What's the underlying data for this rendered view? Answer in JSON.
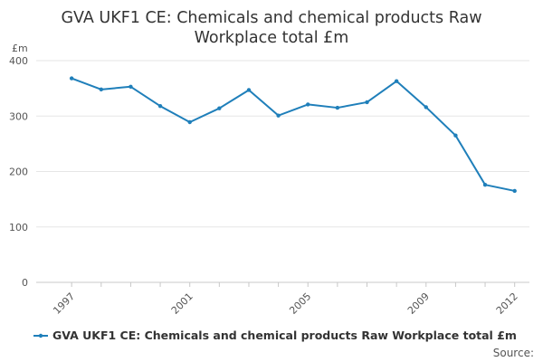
{
  "chart_data": {
    "type": "line",
    "title_lines": [
      "GVA UKF1 CE: Chemicals and chemical products Raw",
      "Workplace total £m"
    ],
    "ylabel": "£m",
    "xlabel": "",
    "x": [
      1997,
      1998,
      1999,
      2000,
      2001,
      2002,
      2003,
      2004,
      2005,
      2006,
      2007,
      2008,
      2009,
      2010,
      2011,
      2012
    ],
    "x_tick_labels": [
      "1997",
      "2001",
      "2005",
      "2009",
      "2012"
    ],
    "x_tick_values": [
      1997,
      2001,
      2005,
      2009,
      2012
    ],
    "xlim": [
      1997,
      2012
    ],
    "y_tick_labels": [
      "0",
      "100",
      "200",
      "300",
      "400"
    ],
    "y_tick_values": [
      0,
      100,
      200,
      300,
      400
    ],
    "ylim": [
      0,
      400
    ],
    "grid": true,
    "legend_position": "bottom",
    "series": [
      {
        "name": "GVA UKF1 CE: Chemicals and chemical products Raw Workplace total £m",
        "color": "#1f7fba",
        "values": [
          368,
          348,
          353,
          318,
          289,
          314,
          347,
          301,
          321,
          315,
          325,
          363,
          316,
          265,
          176,
          165
        ]
      }
    ],
    "source_label": "Source:"
  }
}
